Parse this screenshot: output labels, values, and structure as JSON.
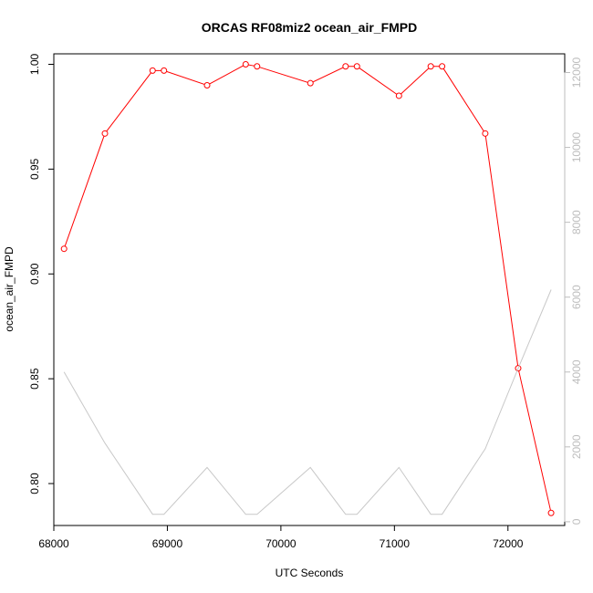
{
  "chart_data": {
    "type": "line",
    "title": "ORCAS RF08miz2 ocean_air_FMPD",
    "xlabel": "UTC Seconds",
    "ylabel": "ocean_air_FMPD",
    "xlim": [
      68000,
      72500
    ],
    "ylim": [
      0.78,
      1.005
    ],
    "y2lim": [
      -100,
      12500
    ],
    "xticks": [
      68000,
      69000,
      70000,
      71000,
      72000
    ],
    "yticks": [
      0.8,
      0.85,
      0.9,
      0.95,
      1.0
    ],
    "y2ticks": [
      0,
      2000,
      4000,
      6000,
      8000,
      10000,
      12000
    ],
    "series": [
      {
        "color": "#ff0000",
        "marker": "open-circle",
        "axis": "left",
        "x": [
          68090,
          68450,
          68870,
          68970,
          69350,
          69690,
          69790,
          70260,
          70570,
          70670,
          71040,
          71320,
          71420,
          71800,
          72090,
          72380
        ],
        "y": [
          0.912,
          0.967,
          0.997,
          0.997,
          0.99,
          1.0,
          0.999,
          0.991,
          0.999,
          0.999,
          0.985,
          0.999,
          0.999,
          0.967,
          0.855,
          0.786
        ]
      },
      {
        "color": "#c8c8c8",
        "marker": "none",
        "axis": "right",
        "x": [
          68090,
          68450,
          68870,
          68970,
          69350,
          69690,
          69790,
          70260,
          70570,
          70670,
          71040,
          71320,
          71420,
          71800,
          72090,
          72380
        ],
        "y": [
          4000,
          2100,
          200,
          200,
          1450,
          200,
          200,
          1450,
          200,
          200,
          1450,
          200,
          200,
          1950,
          4100,
          6200
        ]
      }
    ]
  }
}
